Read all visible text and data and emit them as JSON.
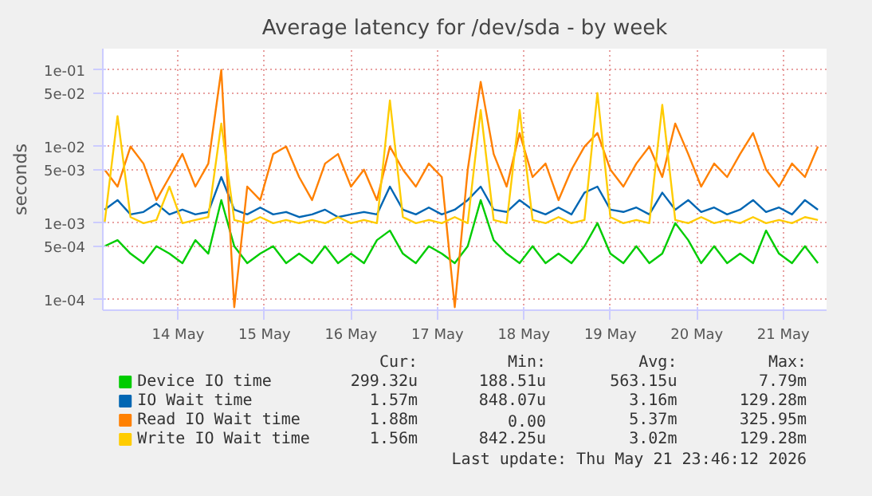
{
  "chart_data": {
    "type": "line",
    "title": "Average latency for /dev/sda - by week",
    "ylabel": "seconds",
    "log": "y",
    "grid": true,
    "legend": "bottom",
    "marker": "none",
    "line_style": "solid",
    "xlim": [
      "2026-05-13T15:07",
      "2026-05-22T00:00"
    ],
    "xticks": [
      {
        "value": "2026-05-14T12:00",
        "label": "14 May"
      },
      {
        "value": "2026-05-15T12:00",
        "label": "15 May"
      },
      {
        "value": "2026-05-16T12:00",
        "label": "16 May"
      },
      {
        "value": "2026-05-17T12:00",
        "label": "17 May"
      },
      {
        "value": "2026-05-18T12:00",
        "label": "18 May"
      },
      {
        "value": "2026-05-19T12:00",
        "label": "19 May"
      },
      {
        "value": "2026-05-20T12:00",
        "label": "20 May"
      },
      {
        "value": "2026-05-21T12:00",
        "label": "21 May"
      }
    ],
    "ylim": [
      7.3e-05,
      0.19
    ],
    "yticks": [
      {
        "value": 0.0001,
        "label": "1e-04"
      },
      {
        "value": 0.0005,
        "label": "5e-04"
      },
      {
        "value": 0.001,
        "label": "1e-03"
      },
      {
        "value": 0.005,
        "label": "5e-03"
      },
      {
        "value": 0.01,
        "label": "1e-02"
      },
      {
        "value": 0.05,
        "label": "5e-02"
      },
      {
        "value": 0.1,
        "label": "1e-01"
      }
    ],
    "x": [
      "2026-05-13T15:36",
      "2026-05-13T19:12",
      "2026-05-13T22:48",
      "2026-05-14T02:24",
      "2026-05-14T06:00",
      "2026-05-14T09:36",
      "2026-05-14T13:12",
      "2026-05-14T16:48",
      "2026-05-14T20:24",
      "2026-05-15T00:00",
      "2026-05-15T03:36",
      "2026-05-15T07:12",
      "2026-05-15T10:48",
      "2026-05-15T14:24",
      "2026-05-15T18:00",
      "2026-05-15T21:36",
      "2026-05-16T01:12",
      "2026-05-16T04:48",
      "2026-05-16T08:24",
      "2026-05-16T12:00",
      "2026-05-16T15:36",
      "2026-05-16T19:12",
      "2026-05-16T22:48",
      "2026-05-17T02:24",
      "2026-05-17T06:00",
      "2026-05-17T09:36",
      "2026-05-17T13:12",
      "2026-05-17T16:48",
      "2026-05-17T20:24",
      "2026-05-18T00:00",
      "2026-05-18T03:36",
      "2026-05-18T07:12",
      "2026-05-18T10:48",
      "2026-05-18T14:24",
      "2026-05-18T18:00",
      "2026-05-18T21:36",
      "2026-05-19T01:12",
      "2026-05-19T04:48",
      "2026-05-19T08:24",
      "2026-05-19T12:00",
      "2026-05-19T15:36",
      "2026-05-19T19:12",
      "2026-05-19T22:48",
      "2026-05-20T02:24",
      "2026-05-20T06:00",
      "2026-05-20T09:36",
      "2026-05-20T13:12",
      "2026-05-20T16:48",
      "2026-05-20T20:24",
      "2026-05-21T00:00",
      "2026-05-21T03:36",
      "2026-05-21T07:12",
      "2026-05-21T10:48",
      "2026-05-21T14:24",
      "2026-05-21T18:00",
      "2026-05-21T21:36"
    ],
    "series": [
      {
        "name": "Device IO time",
        "color": "#00cc00",
        "values": [
          0.0005,
          0.0006,
          0.0004,
          0.0003,
          0.0005,
          0.0004,
          0.0003,
          0.0006,
          0.0004,
          0.002,
          0.0005,
          0.0003,
          0.0004,
          0.0005,
          0.0003,
          0.0004,
          0.0003,
          0.0005,
          0.0003,
          0.0004,
          0.0003,
          0.0006,
          0.0008,
          0.0004,
          0.0003,
          0.0005,
          0.0004,
          0.0003,
          0.0005,
          0.002,
          0.0006,
          0.0004,
          0.0003,
          0.0005,
          0.0003,
          0.0004,
          0.0003,
          0.0005,
          0.001,
          0.0004,
          0.0003,
          0.0005,
          0.0003,
          0.0004,
          0.001,
          0.0006,
          0.0003,
          0.0005,
          0.0003,
          0.0004,
          0.0003,
          0.0008,
          0.0004,
          0.0003,
          0.0005,
          0.0003
        ]
      },
      {
        "name": "IO Wait time",
        "color": "#0066b3",
        "values": [
          0.0015,
          0.002,
          0.0013,
          0.0014,
          0.0018,
          0.0013,
          0.0015,
          0.0013,
          0.0014,
          0.004,
          0.0015,
          0.0013,
          0.0016,
          0.0013,
          0.0014,
          0.0012,
          0.0013,
          0.0015,
          0.0012,
          0.0013,
          0.0014,
          0.0013,
          0.003,
          0.0015,
          0.0013,
          0.0016,
          0.0013,
          0.0015,
          0.002,
          0.003,
          0.0015,
          0.0014,
          0.002,
          0.0015,
          0.0013,
          0.0016,
          0.0013,
          0.0025,
          0.003,
          0.0015,
          0.0014,
          0.0016,
          0.0013,
          0.0025,
          0.0015,
          0.002,
          0.0014,
          0.0016,
          0.0013,
          0.0015,
          0.002,
          0.0014,
          0.0016,
          0.0013,
          0.002,
          0.0015
        ]
      },
      {
        "name": "Read IO Wait time",
        "color": "#ff8000",
        "values": [
          0.005,
          0.003,
          0.01,
          0.006,
          0.002,
          0.004,
          0.008,
          0.003,
          0.006,
          0.1,
          8e-05,
          0.003,
          0.002,
          0.008,
          0.01,
          0.004,
          0.002,
          0.006,
          0.008,
          0.003,
          0.005,
          0.002,
          0.01,
          0.005,
          0.003,
          0.006,
          0.004,
          8e-05,
          0.005,
          0.07,
          0.008,
          0.003,
          0.015,
          0.004,
          0.006,
          0.002,
          0.005,
          0.01,
          0.015,
          0.005,
          0.003,
          0.006,
          0.01,
          0.004,
          0.02,
          0.008,
          0.003,
          0.006,
          0.004,
          0.008,
          0.015,
          0.005,
          0.003,
          0.006,
          0.004,
          0.01
        ]
      },
      {
        "name": "Write IO Wait time",
        "color": "#ffcc00",
        "values": [
          0.001,
          0.025,
          0.0012,
          0.001,
          0.0011,
          0.003,
          0.001,
          0.0011,
          0.0012,
          0.02,
          0.0011,
          0.001,
          0.0012,
          0.001,
          0.0011,
          0.001,
          0.0011,
          0.001,
          0.0012,
          0.001,
          0.0011,
          0.001,
          0.04,
          0.0012,
          0.001,
          0.0011,
          0.001,
          0.0012,
          0.001,
          0.03,
          0.0011,
          0.001,
          0.03,
          0.0011,
          0.001,
          0.0012,
          0.001,
          0.0011,
          0.05,
          0.0012,
          0.001,
          0.0011,
          0.001,
          0.035,
          0.0011,
          0.001,
          0.0012,
          0.001,
          0.0011,
          0.001,
          0.0012,
          0.001,
          0.0011,
          0.001,
          0.0012,
          0.0011
        ]
      }
    ],
    "annotations": [
      "Cur:",
      "Min:",
      "Avg:",
      "Max:",
      "299.32u",
      "188.51u",
      "563.15u",
      "7.79m",
      "1.57m",
      "848.07u",
      "3.16m",
      "129.28m",
      "1.88m",
      "0.00",
      "5.37m",
      "325.95m",
      "1.56m",
      "842.25u",
      "3.02m",
      "129.28m",
      "Last update: Thu May 21 23:46:12 2026"
    ]
  }
}
